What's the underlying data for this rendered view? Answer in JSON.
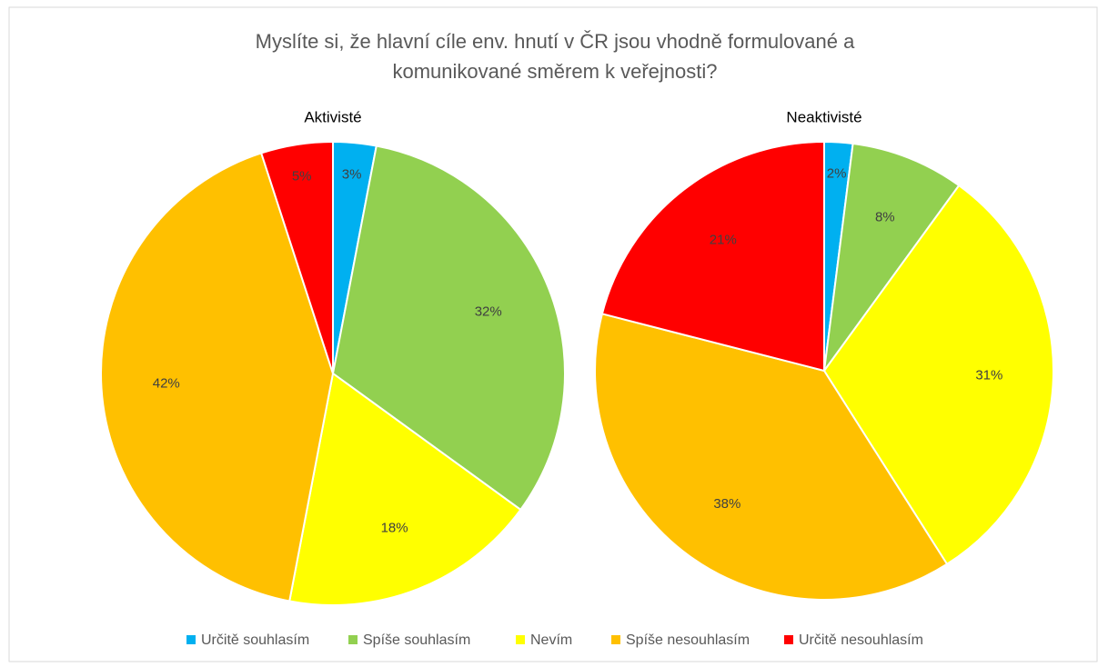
{
  "title": "Myslíte si, že hlavní cíle env. hnutí v ČR jsou vhodně formulované a komunikované směrem k veřejnosti?",
  "chart_data": [
    {
      "type": "pie",
      "title": "Aktivisté",
      "categories": [
        "Určitě souhlasím",
        "Spíše souhlasím",
        "Nevím",
        "Spíše nesouhlasím",
        "Určitě nesouhlasím"
      ],
      "values": [
        3,
        32,
        18,
        42,
        5
      ],
      "value_labels": [
        "3%",
        "32%",
        "18%",
        "42%",
        "5%"
      ],
      "colors": [
        "#00b0f0",
        "#92d050",
        "#ffff00",
        "#ffc000",
        "#ff0000"
      ]
    },
    {
      "type": "pie",
      "title": "Neaktivisté",
      "categories": [
        "Určitě souhlasím",
        "Spíše souhlasím",
        "Nevím",
        "Spíše nesouhlasím",
        "Určitě nesouhlasím"
      ],
      "values": [
        2,
        8,
        31,
        38,
        21
      ],
      "value_labels": [
        "2%",
        "8%",
        "31%",
        "38%",
        "21%"
      ],
      "colors": [
        "#00b0f0",
        "#92d050",
        "#ffff00",
        "#ffc000",
        "#ff0000"
      ]
    }
  ]
}
